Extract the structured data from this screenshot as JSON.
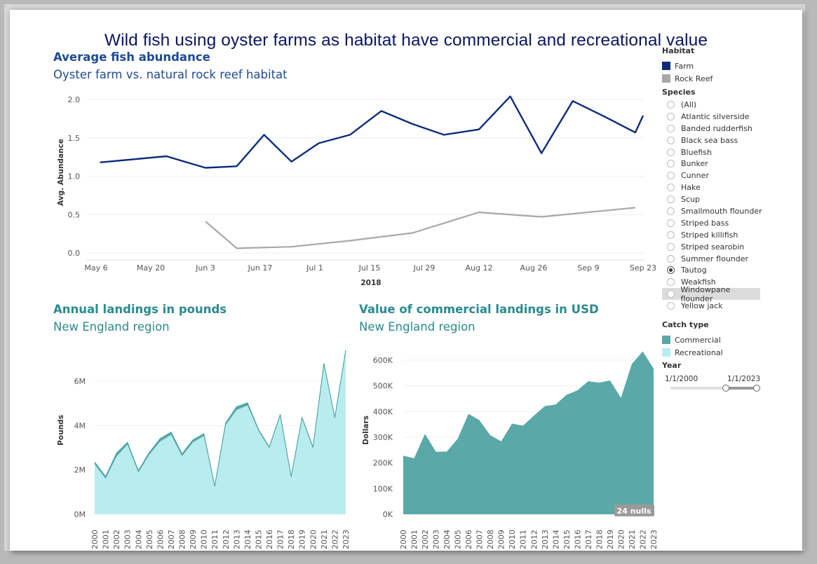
{
  "title": "Wild fish using oyster farms as habitat have commercial and recreational value",
  "abundance": {
    "title": "Average fish abundance",
    "subtitle": "Oyster farm vs. natural rock reef habitat",
    "ylabel": "Avg. Abundance",
    "xlabel": "2018",
    "yticks": [
      "2.0",
      "1.5",
      "1.0",
      "0.5",
      "0.0"
    ],
    "xticks": [
      "May 6",
      "May 20",
      "Jun 3",
      "Jun 17",
      "Jul 1",
      "Jul 15",
      "Jul 29",
      "Aug 12",
      "Aug 26",
      "Sep 9",
      "Sep 23"
    ]
  },
  "pounds": {
    "title": "Annual landings in pounds",
    "subtitle": "New England region",
    "ylabel": "Pounds",
    "yticks": [
      "6M",
      "4M",
      "2M",
      "0M"
    ]
  },
  "usd": {
    "title": "Value of commercial landings in USD",
    "subtitle": "New England region",
    "ylabel": "Dollars",
    "yticks": [
      "600K",
      "500K",
      "400K",
      "300K",
      "200K",
      "100K",
      "0K"
    ],
    "nulls_badge": "24 nulls"
  },
  "legend": {
    "habitat_title": "Habitat",
    "habitat": [
      {
        "label": "Farm",
        "color": "#0d2c7a"
      },
      {
        "label": "Rock Reef",
        "color": "#a8a8a8"
      }
    ],
    "species_title": "Species",
    "species": [
      "(All)",
      "Atlantic silverside",
      "Banded rudderfish",
      "Black sea bass",
      "Bluefish",
      "Bunker",
      "Cunner",
      "Hake",
      "Scup",
      "Smallmouth flounder",
      "Striped bass",
      "Striped killifish",
      "Striped searobin",
      "Summer flounder",
      "Tautog",
      "Weakfish",
      "Windowpane flounder",
      "Yellow jack"
    ],
    "species_selected": "Tautog",
    "species_highlighted": "Windowpane flounder",
    "catch_title": "Catch type",
    "catch": [
      {
        "label": "Commercial",
        "color": "#5ba8a8"
      },
      {
        "label": "Recreational",
        "color": "#b9ecee"
      }
    ],
    "year_title": "Year",
    "year_from": "1/1/2000",
    "year_to": "1/1/2023"
  },
  "chart_data": [
    {
      "type": "line",
      "title": "Average fish abundance",
      "subtitle": "Oyster farm vs. natural rock reef habitat",
      "xlabel": "2018",
      "ylabel": "Avg. Abundance",
      "ylim": [
        0,
        2.0
      ],
      "series": [
        {
          "name": "Farm",
          "color": "#0d2c7a",
          "x": [
            "2018-05-07",
            "2018-05-24",
            "2018-06-03",
            "2018-06-11",
            "2018-06-18",
            "2018-06-25",
            "2018-07-02",
            "2018-07-10",
            "2018-07-18",
            "2018-07-26",
            "2018-08-03",
            "2018-08-12",
            "2018-08-20",
            "2018-08-28",
            "2018-09-05",
            "2018-09-13",
            "2018-09-21",
            "2018-09-23"
          ],
          "y": [
            1.18,
            1.26,
            1.11,
            1.13,
            1.54,
            1.19,
            1.43,
            1.54,
            1.85,
            1.68,
            1.54,
            1.61,
            2.04,
            1.3,
            1.98,
            1.78,
            1.57,
            1.79
          ]
        },
        {
          "name": "Rock Reef",
          "color": "#a8a8a8",
          "x": [
            "2018-06-03",
            "2018-06-11",
            "2018-06-25",
            "2018-07-10",
            "2018-07-26",
            "2018-08-12",
            "2018-08-28",
            "2018-09-21"
          ],
          "y": [
            0.41,
            0.06,
            0.08,
            0.16,
            0.26,
            0.53,
            0.47,
            0.59
          ]
        }
      ]
    },
    {
      "type": "area",
      "title": "Annual landings in pounds",
      "subtitle": "New England region",
      "ylabel": "Pounds",
      "ylim": [
        0,
        7500000
      ],
      "categories": [
        "2000",
        "2001",
        "2002",
        "2003",
        "2004",
        "2005",
        "2006",
        "2007",
        "2008",
        "2009",
        "2010",
        "2011",
        "2012",
        "2013",
        "2014",
        "2015",
        "2016",
        "2017",
        "2018",
        "2019",
        "2020",
        "2021",
        "2022",
        "2023"
      ],
      "series": [
        {
          "name": "Commercial",
          "color": "#5ba8a8",
          "values": [
            100000,
            100000,
            150000,
            100000,
            80000,
            100000,
            130000,
            130000,
            100000,
            110000,
            100000,
            60000,
            90000,
            140000,
            120000,
            60000,
            50000,
            60000,
            40000,
            50000,
            60000,
            60000,
            50000,
            60000
          ]
        },
        {
          "name": "Recreational",
          "color": "#b9ecee",
          "values": [
            2250000,
            1600000,
            2600000,
            3140000,
            1880000,
            2680000,
            3280000,
            3570000,
            2620000,
            3240000,
            3530000,
            1210000,
            4020000,
            4700000,
            4900000,
            3760000,
            2980000,
            4440000,
            1660000,
            4310000,
            2960000,
            6740000,
            4310000,
            7340000
          ]
        }
      ]
    },
    {
      "type": "area",
      "title": "Value of commercial landings in USD",
      "subtitle": "New England region",
      "ylabel": "Dollars",
      "ylim": [
        0,
        650000
      ],
      "categories": [
        "2000",
        "2001",
        "2002",
        "2003",
        "2004",
        "2005",
        "2006",
        "2007",
        "2008",
        "2009",
        "2010",
        "2011",
        "2012",
        "2013",
        "2014",
        "2015",
        "2016",
        "2017",
        "2018",
        "2019",
        "2020",
        "2021",
        "2022",
        "2023"
      ],
      "series": [
        {
          "name": "Commercial",
          "color": "#5ba8a8",
          "values": [
            228000,
            218000,
            313000,
            243000,
            244000,
            294000,
            391000,
            366000,
            307000,
            284000,
            353000,
            345000,
            384000,
            421000,
            427000,
            465000,
            482000,
            518000,
            512000,
            521000,
            453000,
            585000,
            634000,
            567000
          ]
        }
      ],
      "annotations": [
        "24 nulls"
      ]
    }
  ]
}
